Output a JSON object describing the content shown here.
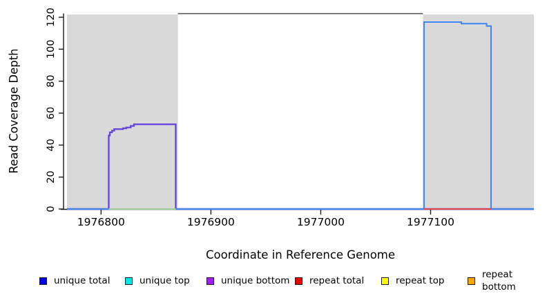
{
  "axes": {
    "x_title": "Coordinate in Reference Genome",
    "y_title": "Read Coverage Depth"
  },
  "legend": {
    "items": [
      {
        "label": "unique total",
        "color": "#0000DD"
      },
      {
        "label": "unique top",
        "color": "#00E5E5"
      },
      {
        "label": "unique bottom",
        "color": "#A020F0"
      },
      {
        "label": "repeat total",
        "color": "#E60000"
      },
      {
        "label": "repeat top",
        "color": "#FFFF00"
      },
      {
        "label": "repeat bottom",
        "color": "#FFA500"
      }
    ]
  },
  "chart_data": {
    "type": "line",
    "title": "",
    "xlabel": "Coordinate in Reference Genome",
    "ylabel": "Read Coverage Depth",
    "xlim": [
      1976769,
      1977194
    ],
    "ylim": [
      0,
      120
    ],
    "grid": false,
    "legend_position": "bottom",
    "x_ticks": [
      {
        "value": 1976800,
        "label": "1976800"
      },
      {
        "value": 1976900,
        "label": "1976900"
      },
      {
        "value": 1977000,
        "label": "1977000"
      },
      {
        "value": 1977100,
        "label": "1977100"
      }
    ],
    "y_ticks": [
      {
        "value": 0,
        "label": "0"
      },
      {
        "value": 20,
        "label": "20"
      },
      {
        "value": 40,
        "label": "40"
      },
      {
        "value": 60,
        "label": "60"
      },
      {
        "value": 80,
        "label": "80"
      },
      {
        "value": 100,
        "label": "100"
      },
      {
        "value": 120,
        "label": "120"
      }
    ],
    "shaded_regions": [
      {
        "x0": 1976769,
        "x1": 1976870,
        "color": "#D9D9D9",
        "note": "left repeat-masked block"
      },
      {
        "x0": 1977093,
        "x1": 1977194,
        "color": "#D9D9D9",
        "note": "right repeat-masked block"
      }
    ],
    "region_top_value": 121.7,
    "boundary_top_line": {
      "x0": 1976870,
      "x1": 1977093,
      "y": 122.3,
      "color": "#5A5A5A"
    },
    "series": [
      {
        "name": "unique bottom coverage (left peak)",
        "plot_color": "#6747DC",
        "stroke_width": 2.4,
        "points": [
          [
            1976769,
            0
          ],
          [
            1976807,
            0
          ],
          [
            1976807,
            46
          ],
          [
            1976808,
            46
          ],
          [
            1976808,
            48
          ],
          [
            1976810,
            48
          ],
          [
            1976810,
            49
          ],
          [
            1976812,
            49
          ],
          [
            1976812,
            50
          ],
          [
            1976820,
            50
          ],
          [
            1976820,
            50.5
          ],
          [
            1976823,
            50.5
          ],
          [
            1976823,
            51
          ],
          [
            1976827,
            51
          ],
          [
            1976827,
            52
          ],
          [
            1976830,
            52
          ],
          [
            1976830,
            53
          ],
          [
            1976868,
            53
          ],
          [
            1976868,
            0
          ],
          [
            1977194,
            0
          ]
        ]
      },
      {
        "name": "unique total coverage (right peak)",
        "plot_color": "#3E86F0",
        "stroke_width": 2,
        "points": [
          [
            1976769,
            0
          ],
          [
            1977094,
            0
          ],
          [
            1977094,
            117
          ],
          [
            1977128,
            117
          ],
          [
            1977128,
            116
          ],
          [
            1977151,
            116
          ],
          [
            1977151,
            114.5
          ],
          [
            1977155,
            114.5
          ],
          [
            1977155,
            0
          ],
          [
            1977194,
            0
          ]
        ]
      },
      {
        "name": "top/bottom zero overlap under left peak",
        "plot_color": "#9BCF9B",
        "stroke_width": 2,
        "points": [
          [
            1976807,
            0
          ],
          [
            1976868,
            0
          ]
        ]
      },
      {
        "name": "repeat total zero line under right peak",
        "plot_color": "#E64545",
        "stroke_width": 2,
        "points": [
          [
            1977094,
            0
          ],
          [
            1977155,
            0
          ]
        ]
      }
    ]
  }
}
